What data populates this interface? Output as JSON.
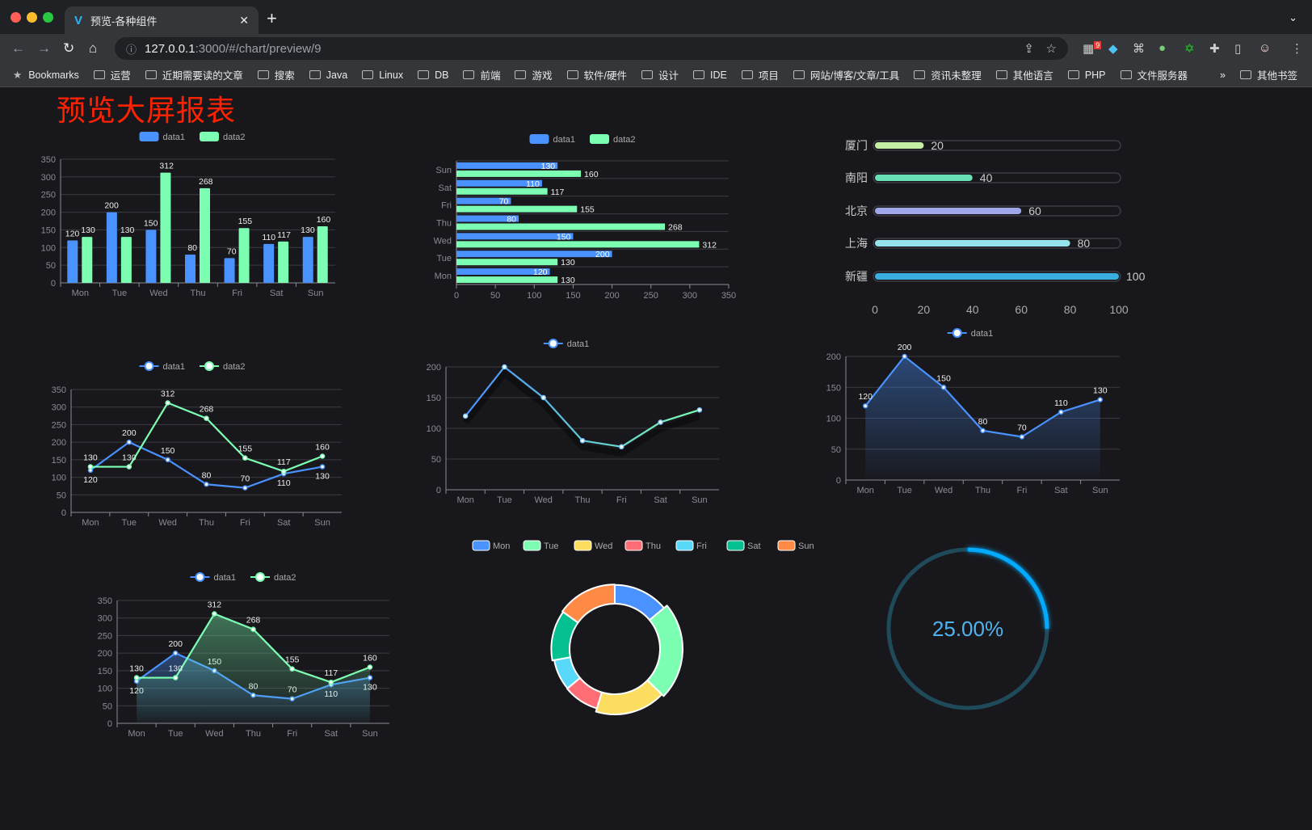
{
  "browser": {
    "tab_title": "预览-各种组件",
    "url_host": "127.0.0.1",
    "url_path": ":3000/#/chart/preview/9",
    "extension_badge": "9",
    "bookmarks": [
      "Bookmarks",
      "运营",
      "近期需要读的文章",
      "搜索",
      "Java",
      "Linux",
      "DB",
      "前端",
      "游戏",
      "软件/硬件",
      "设计",
      "IDE",
      "项目",
      "网站/博客/文章/工具",
      "资讯未整理",
      "其他语言",
      "PHP",
      "文件服务器"
    ],
    "bookmarks_overflow": "»",
    "other_bookmarks": "其他书签"
  },
  "page": {
    "title": "预览大屏报表",
    "title_color": "#ff2200",
    "background": "#18181c"
  },
  "colors": {
    "data1": "#4992ff",
    "data2": "#7cffb2",
    "grid": "#3a3a40",
    "axis": "#8a8a95",
    "label": "#eeeeee"
  },
  "chart_data": [
    {
      "id": "bar",
      "type": "bar",
      "categories": [
        "Mon",
        "Tue",
        "Wed",
        "Thu",
        "Fri",
        "Sat",
        "Sun"
      ],
      "series": [
        {
          "name": "data1",
          "values": [
            120,
            200,
            150,
            80,
            70,
            110,
            130
          ]
        },
        {
          "name": "data2",
          "values": [
            130,
            130,
            312,
            268,
            155,
            117,
            160
          ]
        }
      ],
      "ylim": [
        0,
        350
      ],
      "yticks": [
        0,
        50,
        100,
        150,
        200,
        250,
        300,
        350
      ],
      "grid": true,
      "legend": "top",
      "data_labels": true
    },
    {
      "id": "hbar",
      "type": "bar",
      "orientation": "horizontal",
      "categories": [
        "Mon",
        "Tue",
        "Wed",
        "Thu",
        "Fri",
        "Sat",
        "Sun"
      ],
      "series": [
        {
          "name": "data1",
          "values": [
            120,
            200,
            150,
            80,
            70,
            110,
            130
          ]
        },
        {
          "name": "data2",
          "values": [
            130,
            130,
            312,
            268,
            155,
            117,
            160
          ]
        }
      ],
      "xlim": [
        0,
        350
      ],
      "xticks": [
        0,
        50,
        100,
        150,
        200,
        250,
        300,
        350
      ],
      "grid": true,
      "legend": "top",
      "data_labels": true
    },
    {
      "id": "progress",
      "type": "bar",
      "orientation": "horizontal",
      "categories": [
        "厦门",
        "南阳",
        "北京",
        "上海",
        "新疆"
      ],
      "values": [
        20,
        40,
        60,
        80,
        100
      ],
      "colors": [
        "#c5eea5",
        "#67e0b4",
        "#9fa7e8",
        "#96e4eb",
        "#3aaee0"
      ],
      "xlim": [
        0,
        100
      ],
      "xticks": [
        0,
        20,
        40,
        60,
        80,
        100
      ],
      "data_labels": true
    },
    {
      "id": "line",
      "type": "line",
      "categories": [
        "Mon",
        "Tue",
        "Wed",
        "Thu",
        "Fri",
        "Sat",
        "Sun"
      ],
      "series": [
        {
          "name": "data1",
          "values": [
            120,
            200,
            150,
            80,
            70,
            110,
            130
          ]
        },
        {
          "name": "data2",
          "values": [
            130,
            130,
            312,
            268,
            155,
            117,
            160
          ]
        }
      ],
      "ylim": [
        0,
        350
      ],
      "yticks": [
        0,
        50,
        100,
        150,
        200,
        250,
        300,
        350
      ],
      "grid": true,
      "legend": "top",
      "data_labels": true
    },
    {
      "id": "gradline",
      "type": "line",
      "categories": [
        "Mon",
        "Tue",
        "Wed",
        "Thu",
        "Fri",
        "Sat",
        "Sun"
      ],
      "series": [
        {
          "name": "data1",
          "values": [
            120,
            200,
            150,
            80,
            70,
            110,
            130
          ]
        }
      ],
      "ylim": [
        0,
        200
      ],
      "yticks": [
        0,
        50,
        100,
        150,
        200
      ],
      "grid": true,
      "legend": "top",
      "data_labels": false
    },
    {
      "id": "area",
      "type": "area",
      "categories": [
        "Mon",
        "Tue",
        "Wed",
        "Thu",
        "Fri",
        "Sat",
        "Sun"
      ],
      "series": [
        {
          "name": "data1",
          "values": [
            120,
            200,
            150,
            80,
            70,
            110,
            130
          ]
        }
      ],
      "ylim": [
        0,
        200
      ],
      "yticks": [
        0,
        50,
        100,
        150,
        200
      ],
      "grid": true,
      "legend": "top",
      "data_labels": true
    },
    {
      "id": "area2",
      "type": "area",
      "categories": [
        "Mon",
        "Tue",
        "Wed",
        "Thu",
        "Fri",
        "Sat",
        "Sun"
      ],
      "series": [
        {
          "name": "data1",
          "values": [
            120,
            200,
            150,
            80,
            70,
            110,
            130
          ]
        },
        {
          "name": "data2",
          "values": [
            130,
            130,
            312,
            268,
            155,
            117,
            160
          ]
        }
      ],
      "ylim": [
        0,
        350
      ],
      "yticks": [
        0,
        50,
        100,
        150,
        200,
        250,
        300,
        350
      ],
      "grid": true,
      "legend": "top",
      "data_labels": true
    },
    {
      "id": "donut",
      "type": "pie",
      "categories": [
        "Mon",
        "Tue",
        "Wed",
        "Thu",
        "Fri",
        "Sat",
        "Sun"
      ],
      "values": [
        120,
        200,
        150,
        80,
        70,
        110,
        130
      ],
      "colors": [
        "#4992ff",
        "#7cffb2",
        "#fddd60",
        "#ff6e76",
        "#58d9f9",
        "#05c091",
        "#ff8a45"
      ],
      "legend": "top"
    },
    {
      "id": "gauge",
      "type": "gauge",
      "value": 25,
      "label": "25.00%",
      "color": "#00aaff",
      "track_color": "#1e4a5a"
    }
  ]
}
